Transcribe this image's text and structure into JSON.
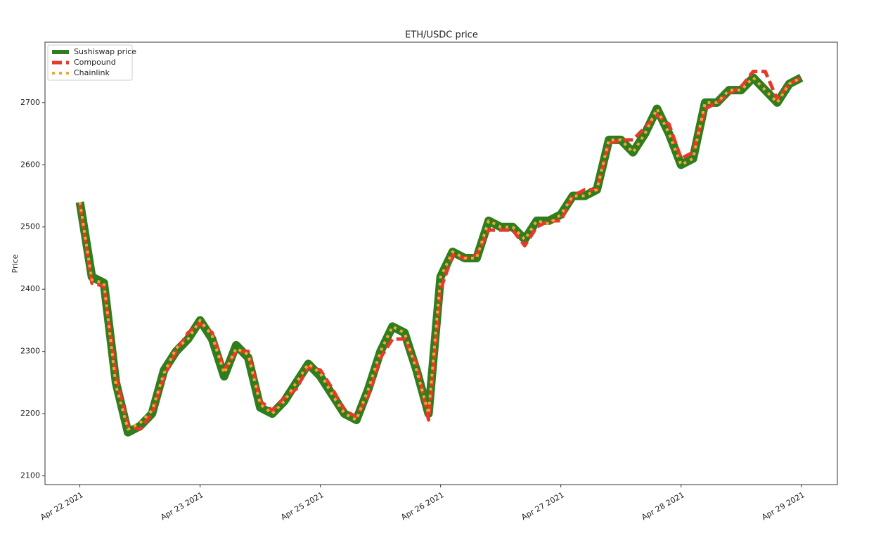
{
  "chart_data": {
    "type": "line",
    "title": "ETH/USDC price",
    "y_label": "Price",
    "x": [
      0,
      0.1,
      0.2,
      0.3,
      0.4,
      0.5,
      0.6,
      0.7,
      0.8,
      0.9,
      1,
      1.1,
      1.2,
      1.3,
      1.4,
      1.5,
      1.6,
      1.7,
      1.8,
      1.9,
      2,
      2.1,
      2.2,
      2.3,
      2.4,
      2.5,
      2.6,
      2.7,
      2.8,
      2.9,
      3,
      3.1,
      3.2,
      3.3,
      3.4,
      3.5,
      3.6,
      3.7,
      3.8,
      3.9,
      4,
      4.1,
      4.2,
      4.3,
      4.4,
      4.5,
      4.6,
      4.7,
      4.8,
      4.9,
      5,
      5.1,
      5.2,
      5.3,
      5.4,
      5.5,
      5.6,
      5.7,
      5.8,
      5.9,
      6
    ],
    "series": [
      {
        "name": "Sushiswap price",
        "color": "#2e7d1e",
        "style": "solid",
        "width": 12,
        "values": [
          2540,
          2420,
          2410,
          2250,
          2170,
          2180,
          2200,
          2270,
          2300,
          2320,
          2350,
          2320,
          2260,
          2310,
          2290,
          2210,
          2200,
          2220,
          2250,
          2280,
          2260,
          2230,
          2200,
          2190,
          2240,
          2300,
          2340,
          2330,
          2270,
          2200,
          2420,
          2460,
          2450,
          2450,
          2510,
          2500,
          2500,
          2480,
          2510,
          2510,
          2520,
          2550,
          2550,
          2560,
          2640,
          2640,
          2620,
          2650,
          2690,
          2650,
          2600,
          2610,
          2700,
          2700,
          2720,
          2720,
          2740,
          2720,
          2700,
          2730,
          2740
        ]
      },
      {
        "name": "Compound",
        "color": "#e53a2a",
        "style": "dashed",
        "width": 5,
        "values": [
          2535,
          2410,
          2405,
          2260,
          2180,
          2175,
          2200,
          2260,
          2300,
          2330,
          2345,
          2330,
          2270,
          2300,
          2300,
          2220,
          2205,
          2225,
          2240,
          2275,
          2270,
          2240,
          2205,
          2195,
          2230,
          2290,
          2320,
          2320,
          2280,
          2190,
          2400,
          2455,
          2450,
          2455,
          2495,
          2495,
          2495,
          2470,
          2500,
          2510,
          2510,
          2550,
          2560,
          2560,
          2635,
          2640,
          2640,
          2660,
          2680,
          2665,
          2610,
          2620,
          2690,
          2700,
          2715,
          2725,
          2750,
          2750,
          2705,
          2730,
          2740
        ]
      },
      {
        "name": "Chainlink",
        "color": "#f0a830",
        "style": "dotted",
        "width": 4,
        "values": [
          2540,
          2415,
          2410,
          2245,
          2175,
          2185,
          2205,
          2265,
          2305,
          2320,
          2350,
          2325,
          2265,
          2305,
          2295,
          2215,
          2200,
          2220,
          2250,
          2280,
          2265,
          2230,
          2200,
          2190,
          2240,
          2300,
          2340,
          2330,
          2270,
          2200,
          2420,
          2460,
          2450,
          2450,
          2510,
          2500,
          2500,
          2480,
          2510,
          2505,
          2520,
          2550,
          2550,
          2560,
          2640,
          2640,
          2620,
          2650,
          2690,
          2650,
          2600,
          2610,
          2700,
          2700,
          2720,
          2720,
          2740,
          2720,
          2700,
          2730,
          2740
        ]
      }
    ],
    "xlim": [
      -0.29,
      6.3
    ],
    "ylim": [
      2086,
      2797
    ],
    "xticks": [
      {
        "value": 0,
        "label": "Apr 22 2021"
      },
      {
        "value": 1,
        "label": "Apr 23 2021"
      },
      {
        "value": 2,
        "label": "Apr 25 2021"
      },
      {
        "value": 3,
        "label": "Apr 26 2021"
      },
      {
        "value": 4,
        "label": "Apr 27 2021"
      },
      {
        "value": 5,
        "label": "Apr 28 2021"
      },
      {
        "value": 6,
        "label": "Apr 29 2021"
      }
    ],
    "yticks": [
      2100,
      2200,
      2300,
      2400,
      2500,
      2600,
      2700
    ],
    "grid": false,
    "legend": "upper-left"
  }
}
